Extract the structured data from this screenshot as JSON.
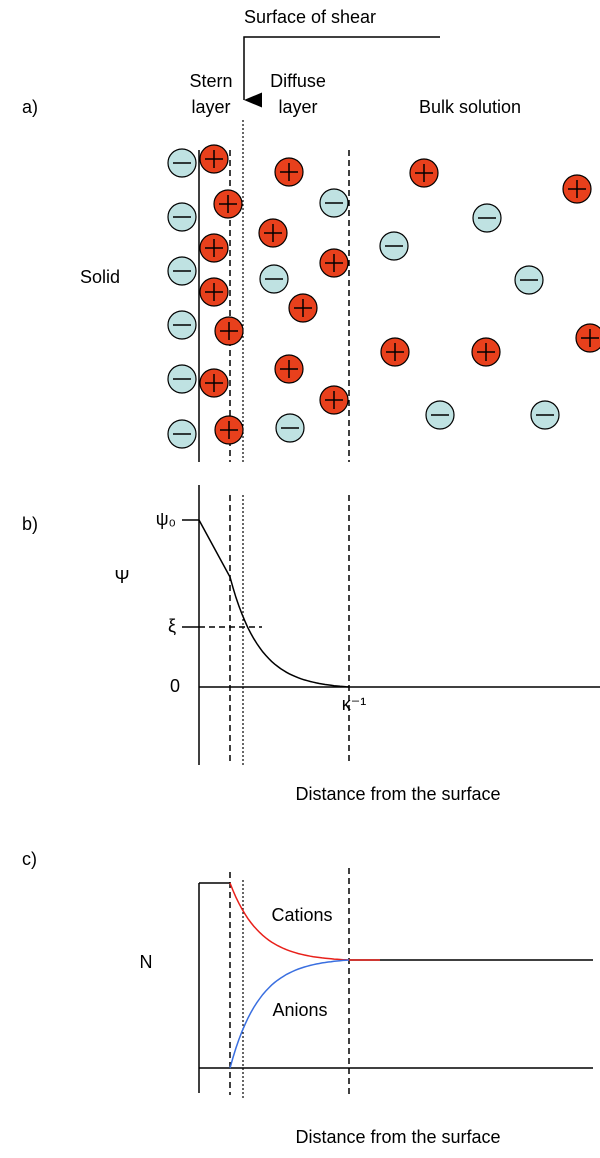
{
  "panel_a": {
    "label": "a)",
    "shear_label": "Surface of shear",
    "stern": [
      "Stern",
      "layer"
    ],
    "diffuse": [
      "Diffuse",
      "layer"
    ],
    "bulk": "Bulk solution",
    "solid": "Solid"
  },
  "panel_b": {
    "label": "b)",
    "psi0": "ψ₀",
    "psi": "Ψ",
    "zeta": "ξ",
    "zero": "0",
    "kappa": "κ⁻¹",
    "xlabel": "Distance from the surface"
  },
  "panel_c": {
    "label": "c)",
    "n": "N",
    "cations": "Cations",
    "anions": "Anions",
    "xlabel": "Distance from the surface"
  }
}
